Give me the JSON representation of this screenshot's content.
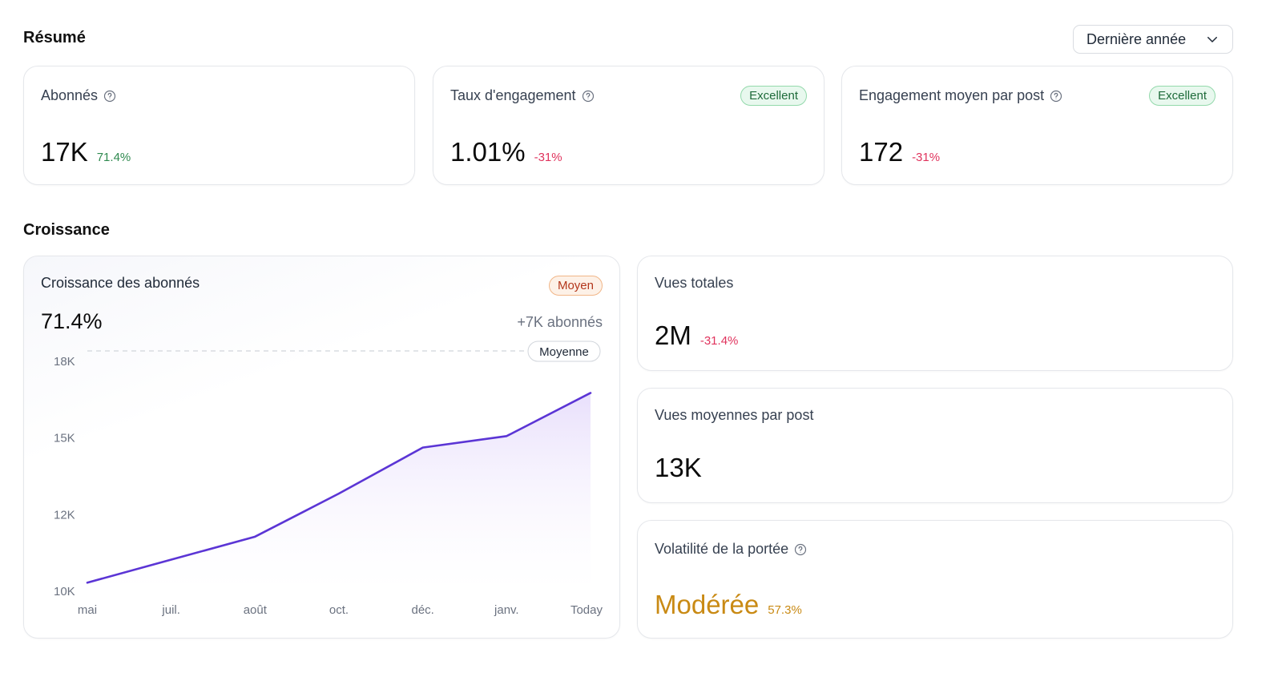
{
  "resume": {
    "title": "Résumé",
    "period_select": {
      "value": "Dernière année",
      "icon": "chevron-down-icon"
    },
    "cards": [
      {
        "label": "Abonnés",
        "help_icon": "question-circle-icon",
        "value": "17K",
        "delta": "71.4%",
        "delta_trend": "positive",
        "badge": null
      },
      {
        "label": "Taux d'engagement",
        "help_icon": "question-circle-icon",
        "value": "1.01%",
        "delta": "-31%",
        "delta_trend": "negative",
        "badge": "Excellent"
      },
      {
        "label": "Engagement moyen par post",
        "help_icon": "question-circle-icon",
        "value": "172",
        "delta": "-31%",
        "delta_trend": "negative",
        "badge": "Excellent"
      }
    ]
  },
  "croissance": {
    "title": "Croissance",
    "growth_card": {
      "label": "Croissance des abonnés",
      "badge": "Moyen",
      "value": "71.4%",
      "subtext": "+7K abonnés",
      "reference_label": "Moyenne"
    },
    "side_cards": [
      {
        "label": "Vues totales",
        "value": "2M",
        "delta": "-31.4%",
        "delta_trend": "negative"
      },
      {
        "label": "Vues moyennes par post",
        "value": "13K",
        "delta": null
      },
      {
        "label": "Volatilité de la portée",
        "help_icon": "question-circle-icon",
        "value": "Modérée",
        "delta": "57.3%",
        "delta_trend": "warning"
      }
    ]
  },
  "colors": {
    "line": "#5b35d5",
    "area_top": "#e9e2fb",
    "positive": "#2f8a4f",
    "negative": "#e0335d",
    "warning": "#c98a14",
    "excellent_badge": "#1e6b3a",
    "moyen_badge": "#b3361b"
  },
  "chart_data": {
    "type": "area",
    "title": "Croissance des abonnés",
    "categories": [
      "mai",
      "juil.",
      "août",
      "oct.",
      "déc.",
      "janv.",
      "Today"
    ],
    "series": [
      {
        "name": "Abonnés",
        "values": [
          10300,
          11100,
          11900,
          13400,
          15000,
          15400,
          16900
        ]
      }
    ],
    "y_ticks": [
      "18K",
      "15K",
      "12K",
      "10K"
    ],
    "ylim": [
      10000,
      18000
    ],
    "reference_line": {
      "label": "Moyenne",
      "value": 18000,
      "style": "dashed"
    },
    "xlabel": "",
    "ylabel": "",
    "grid": false
  }
}
